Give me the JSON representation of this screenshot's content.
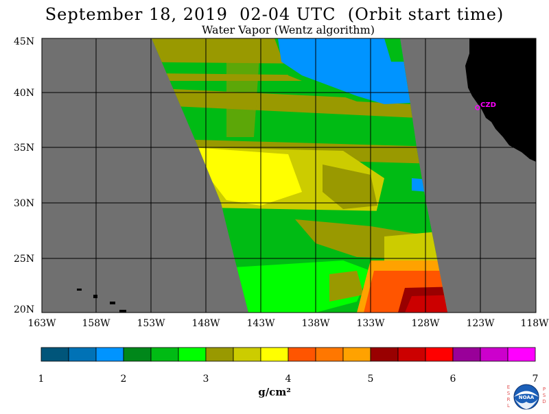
{
  "title": "September 18, 2019  02-04 UTC  (Orbit start time)",
  "subtitle": "Water Vapor (Wentz algorithm)",
  "map": {
    "lat_labels": [
      "45N",
      "40N",
      "35N",
      "30N",
      "25N",
      "20N"
    ],
    "lon_labels": [
      "163W",
      "158W",
      "153W",
      "148W",
      "143W",
      "138W",
      "133W",
      "128W",
      "123W",
      "118W"
    ],
    "station_label": "CZD",
    "colors": {
      "ocean_no_data": "#707070",
      "land": "#000000",
      "grid": "#000000",
      "station": "#ff00ff"
    }
  },
  "colorbar": {
    "colors": [
      "#00557a",
      "#0072b6",
      "#0094ff",
      "#00871a",
      "#00bb14",
      "#00ff00",
      "#999900",
      "#cccc00",
      "#ffff00",
      "#ff5500",
      "#ff7700",
      "#ffa200",
      "#990000",
      "#cc0000",
      "#ff0000",
      "#990099",
      "#cc00cc",
      "#ff00ff"
    ],
    "tick_labels": [
      "1",
      "2",
      "3",
      "4",
      "5",
      "6",
      "7"
    ],
    "units": "g/cm²"
  },
  "logo": {
    "left_letters": "ESRL",
    "right_letters": "PSD",
    "center_text": "NOAA"
  }
}
